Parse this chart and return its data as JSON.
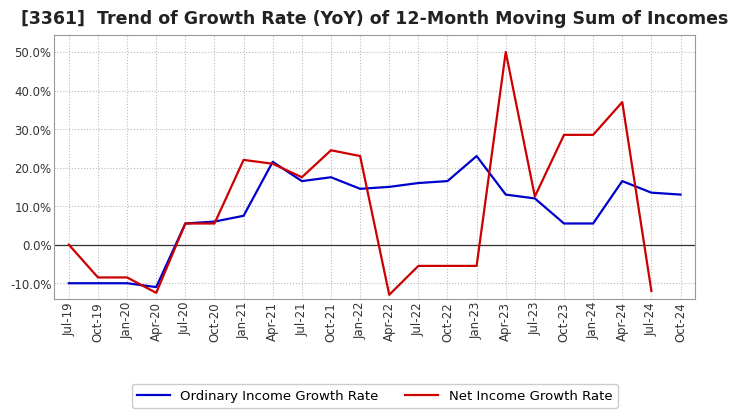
{
  "title": "[3361]  Trend of Growth Rate (YoY) of 12-Month Moving Sum of Incomes",
  "x_labels": [
    "Jul-19",
    "Oct-19",
    "Jan-20",
    "Apr-20",
    "Jul-20",
    "Oct-20",
    "Jan-21",
    "Apr-21",
    "Jul-21",
    "Oct-21",
    "Jan-22",
    "Apr-22",
    "Jul-22",
    "Oct-22",
    "Jan-23",
    "Apr-23",
    "Jul-23",
    "Oct-23",
    "Jan-24",
    "Apr-24",
    "Jul-24",
    "Oct-24"
  ],
  "ordinary_income": [
    -0.1,
    -0.1,
    -0.1,
    -0.11,
    0.055,
    0.06,
    0.075,
    0.215,
    0.165,
    0.175,
    0.145,
    0.15,
    0.16,
    0.165,
    0.23,
    0.13,
    0.12,
    0.055,
    0.055,
    0.165,
    0.135,
    0.13
  ],
  "net_income": [
    0.0,
    -0.085,
    -0.085,
    -0.125,
    0.055,
    0.055,
    0.22,
    0.21,
    0.175,
    0.245,
    0.23,
    -0.13,
    -0.055,
    -0.055,
    -0.055,
    0.5,
    0.125,
    0.285,
    0.285,
    0.37,
    -0.12,
    null
  ],
  "ylim": [
    -0.14,
    0.545
  ],
  "yticks": [
    -0.1,
    0.0,
    0.1,
    0.2,
    0.3,
    0.4,
    0.5
  ],
  "line_color_ordinary": "#0000CC",
  "line_color_net": "#CC0000",
  "bg_color": "#FFFFFF",
  "plot_bg_color": "#FFFFFF",
  "grid_color": "#BBBBBB",
  "legend_ordinary": "Ordinary Income Growth Rate",
  "legend_net": "Net Income Growth Rate",
  "title_fontsize": 12.5,
  "tick_fontsize": 8.5,
  "legend_fontsize": 9.5
}
